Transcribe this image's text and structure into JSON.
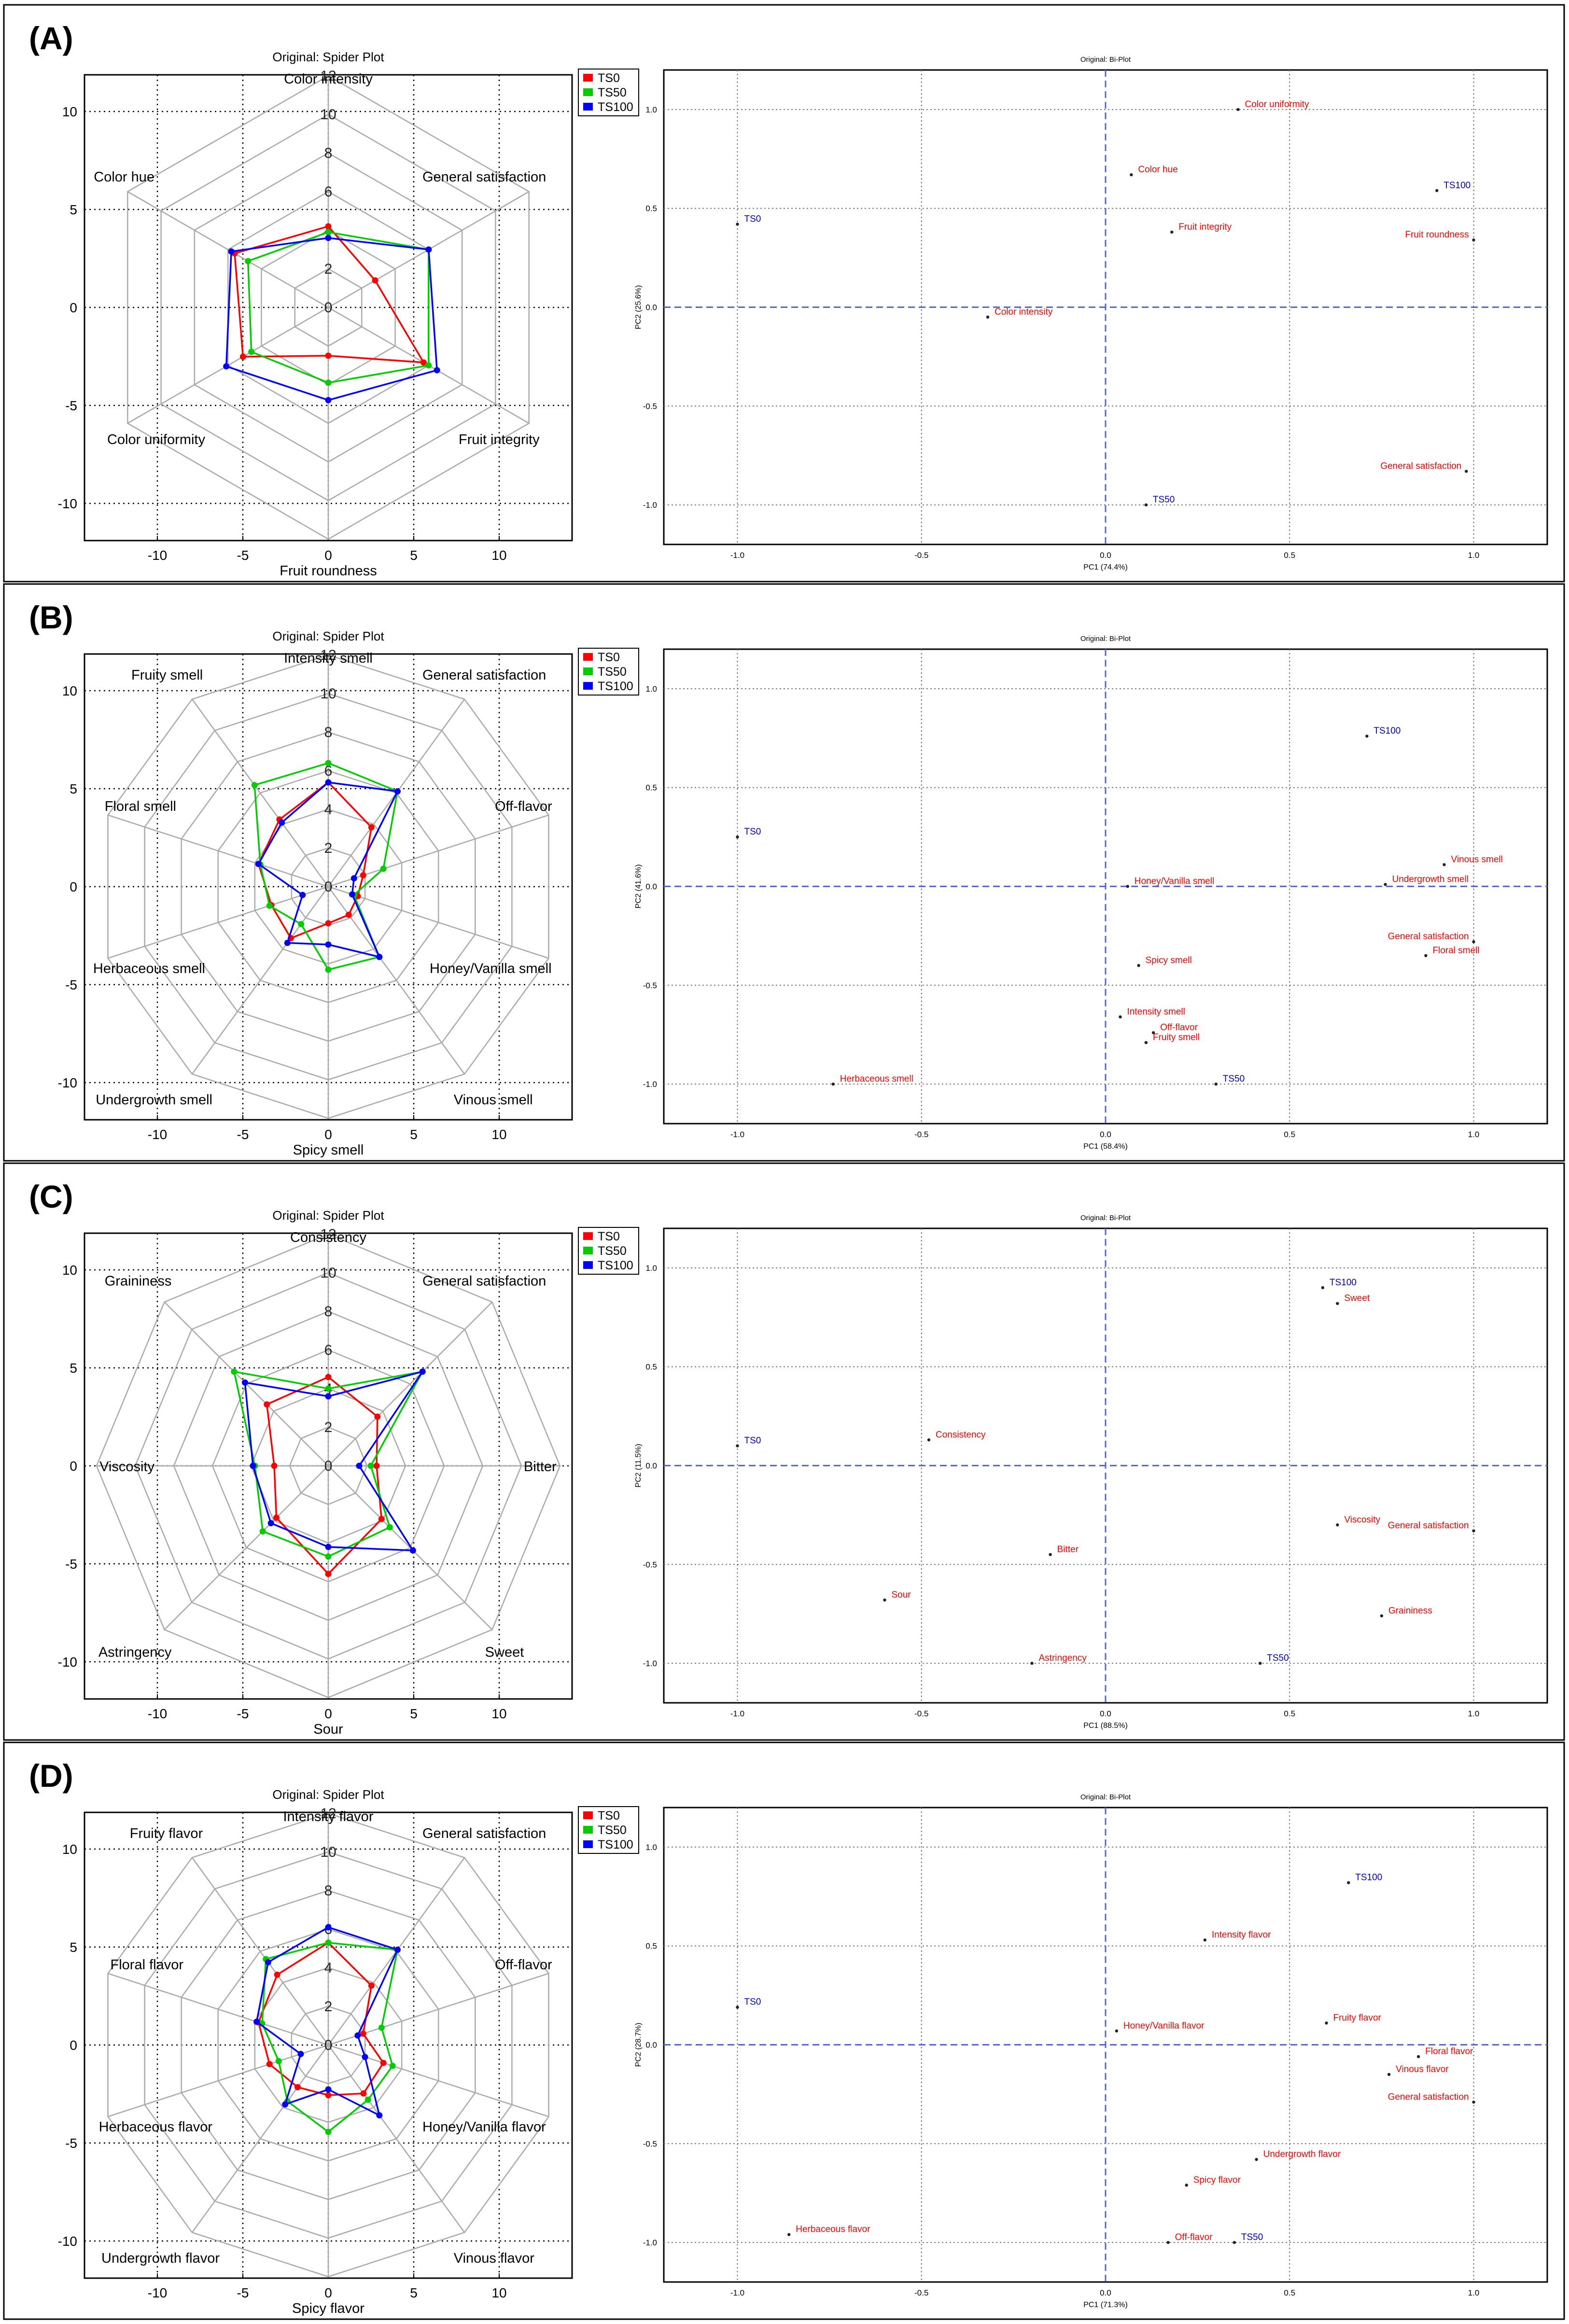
{
  "panel_labels": [
    "(A)",
    "(B)",
    "(C)",
    "(D)"
  ],
  "spider_title": "Original: Spider Plot",
  "biplot_title": "Original: Bi-Plot",
  "legend": [
    {
      "name": "TS0",
      "color": "#ff0000"
    },
    {
      "name": "TS50",
      "color": "#00cc00"
    },
    {
      "name": "TS100",
      "color": "#0000ff"
    }
  ],
  "colors": {
    "point_label": "#ff0000",
    "sample_label": "#0000cc",
    "series_TS0": "#ff0000",
    "series_TS50": "#00cc00",
    "series_TS100": "#0000ff"
  },
  "chart_data": [
    {
      "type": "radar",
      "title": "Original: Spider Plot",
      "rlim": [
        0,
        12
      ],
      "r_ticks": [
        "0",
        "2",
        "4",
        "6",
        "8",
        "10",
        "12"
      ],
      "cart_ticks": [
        "-10",
        "-5",
        "0",
        "5",
        "10"
      ],
      "axes": [
        "Color intensity",
        "General satisfaction",
        "Fruit integrity",
        "Fruit roundness",
        "Color uniformity",
        "Color hue"
      ],
      "series": [
        {
          "name": "TS0",
          "values": [
            4.2,
            2.8,
            5.7,
            2.5,
            5.1,
            5.6
          ]
        },
        {
          "name": "TS50",
          "values": [
            3.9,
            6.0,
            6.0,
            3.9,
            4.6,
            4.8
          ]
        },
        {
          "name": "TS100",
          "values": [
            3.6,
            6.0,
            6.5,
            4.8,
            6.1,
            5.8
          ]
        }
      ]
    },
    {
      "type": "scatter",
      "title": "Original: Bi-Plot",
      "xlabel": "PC1 (74.4%)",
      "ylabel": "PC2 (25.6%)",
      "xlim": [
        -1.2,
        1.2
      ],
      "ylim": [
        -1.2,
        1.2
      ],
      "xticks": [
        "-1.0",
        "-0.5",
        "0.0",
        "0.5",
        "1.0"
      ],
      "yticks": [
        "-1.0",
        "-0.5",
        "0.0",
        "0.5",
        "1.0"
      ],
      "points": [
        {
          "label": "Color uniformity",
          "x": 0.36,
          "y": 1.0,
          "kind": "attribute"
        },
        {
          "label": "Color hue",
          "x": 0.07,
          "y": 0.67,
          "kind": "attribute"
        },
        {
          "label": "TS100",
          "x": 0.9,
          "y": 0.59,
          "kind": "sample"
        },
        {
          "label": "TS0",
          "x": -1.0,
          "y": 0.42,
          "kind": "sample"
        },
        {
          "label": "Fruit integrity",
          "x": 0.18,
          "y": 0.38,
          "kind": "attribute"
        },
        {
          "label": "Fruit roundness",
          "x": 1.0,
          "y": 0.34,
          "kind": "attribute"
        },
        {
          "label": "Color intensity",
          "x": -0.32,
          "y": -0.05,
          "kind": "attribute"
        },
        {
          "label": "General satisfaction",
          "x": 0.98,
          "y": -0.83,
          "kind": "attribute"
        },
        {
          "label": "TS50",
          "x": 0.11,
          "y": -1.0,
          "kind": "sample"
        }
      ]
    },
    {
      "type": "radar",
      "title": "Original: Spider Plot",
      "rlim": [
        0,
        12
      ],
      "r_ticks": [
        "0",
        "2",
        "4",
        "6",
        "8",
        "10",
        "12"
      ],
      "cart_ticks": [
        "-10",
        "-5",
        "0",
        "5",
        "10"
      ],
      "axes": [
        "Intensity smell",
        "General satisfaction",
        "Off-flavor",
        "Honey/Vanilla smell",
        "Vinous smell",
        "Spicy smell",
        "Undergrowth smell",
        "Herbaceous smell",
        "Floral smell",
        "Fruity smell"
      ],
      "series": [
        {
          "name": "TS0",
          "values": [
            5.4,
            3.8,
            1.9,
            1.6,
            1.8,
            1.9,
            3.3,
            3.1,
            3.8,
            4.3
          ]
        },
        {
          "name": "TS50",
          "values": [
            6.4,
            6.1,
            3.0,
            1.4,
            4.5,
            4.3,
            2.4,
            3.2,
            3.7,
            6.5
          ]
        },
        {
          "name": "TS100",
          "values": [
            5.4,
            6.1,
            1.4,
            1.3,
            4.5,
            3.0,
            3.6,
            1.4,
            3.8,
            4.1
          ]
        }
      ]
    },
    {
      "type": "scatter",
      "title": "Original: Bi-Plot",
      "xlabel": "PC1 (58.4%)",
      "ylabel": "PC2 (41.6%)",
      "xlim": [
        -1.2,
        1.2
      ],
      "ylim": [
        -1.2,
        1.2
      ],
      "xticks": [
        "-1.0",
        "-0.5",
        "0.0",
        "0.5",
        "1.0"
      ],
      "yticks": [
        "-1.0",
        "-0.5",
        "0.0",
        "0.5",
        "1.0"
      ],
      "points": [
        {
          "label": "TS100",
          "x": 0.71,
          "y": 0.76,
          "kind": "sample"
        },
        {
          "label": "TS0",
          "x": -1.0,
          "y": 0.25,
          "kind": "sample"
        },
        {
          "label": "Vinous smell",
          "x": 0.92,
          "y": 0.11,
          "kind": "attribute"
        },
        {
          "label": "Honey/Vanilla smell",
          "x": 0.06,
          "y": 0.0,
          "kind": "attribute"
        },
        {
          "label": "Undergrowth smell",
          "x": 0.76,
          "y": 0.01,
          "kind": "attribute"
        },
        {
          "label": "General satisfaction",
          "x": 1.0,
          "y": -0.28,
          "kind": "attribute"
        },
        {
          "label": "Floral smell",
          "x": 0.87,
          "y": -0.35,
          "kind": "attribute"
        },
        {
          "label": "Spicy smell",
          "x": 0.09,
          "y": -0.4,
          "kind": "attribute"
        },
        {
          "label": "Intensity smell",
          "x": 0.04,
          "y": -0.66,
          "kind": "attribute"
        },
        {
          "label": "Off-flavor",
          "x": 0.13,
          "y": -0.74,
          "kind": "attribute"
        },
        {
          "label": "Fruity smell",
          "x": 0.11,
          "y": -0.79,
          "kind": "attribute"
        },
        {
          "label": "Herbaceous smell",
          "x": -0.74,
          "y": -1.0,
          "kind": "attribute"
        },
        {
          "label": "TS50",
          "x": 0.3,
          "y": -1.0,
          "kind": "sample"
        }
      ]
    },
    {
      "type": "radar",
      "title": "Original: Spider Plot",
      "rlim": [
        0,
        12
      ],
      "r_ticks": [
        "0",
        "2",
        "4",
        "6",
        "8",
        "10",
        "12"
      ],
      "cart_ticks": [
        "-10",
        "-5",
        "0",
        "5",
        "10"
      ],
      "axes": [
        "Consistency",
        "General satisfaction",
        "Bitter",
        "Sweet",
        "Sour",
        "Astringency",
        "Viscosity",
        "Graininess"
      ],
      "series": [
        {
          "name": "TS0",
          "values": [
            4.6,
            3.6,
            2.5,
            3.9,
            5.6,
            3.8,
            2.8,
            4.5
          ]
        },
        {
          "name": "TS50",
          "values": [
            4.0,
            6.9,
            2.2,
            4.5,
            4.7,
            4.8,
            3.8,
            6.9
          ]
        },
        {
          "name": "TS100",
          "values": [
            3.6,
            6.9,
            1.6,
            6.2,
            4.2,
            4.2,
            3.9,
            6.1
          ]
        }
      ]
    },
    {
      "type": "scatter",
      "title": "Original: Bi-Plot",
      "xlabel": "PC1 (88.5%)",
      "ylabel": "PC2 (11.5%)",
      "xlim": [
        -1.2,
        1.2
      ],
      "ylim": [
        -1.2,
        1.2
      ],
      "xticks": [
        "-1.0",
        "-0.5",
        "0.0",
        "0.5",
        "1.0"
      ],
      "yticks": [
        "-1.0",
        "-0.5",
        "0.0",
        "0.5",
        "1.0"
      ],
      "points": [
        {
          "label": "TS100",
          "x": 0.59,
          "y": 0.9,
          "kind": "sample"
        },
        {
          "label": "Sweet",
          "x": 0.63,
          "y": 0.82,
          "kind": "attribute"
        },
        {
          "label": "Consistency",
          "x": -0.48,
          "y": 0.13,
          "kind": "attribute"
        },
        {
          "label": "TS0",
          "x": -1.0,
          "y": 0.1,
          "kind": "sample"
        },
        {
          "label": "Viscosity",
          "x": 0.63,
          "y": -0.3,
          "kind": "attribute"
        },
        {
          "label": "General satisfaction",
          "x": 1.0,
          "y": -0.33,
          "kind": "attribute"
        },
        {
          "label": "Bitter",
          "x": -0.15,
          "y": -0.45,
          "kind": "attribute"
        },
        {
          "label": "Sour",
          "x": -0.6,
          "y": -0.68,
          "kind": "attribute"
        },
        {
          "label": "Graininess",
          "x": 0.75,
          "y": -0.76,
          "kind": "attribute"
        },
        {
          "label": "Astringency",
          "x": -0.2,
          "y": -1.0,
          "kind": "attribute"
        },
        {
          "label": "TS50",
          "x": 0.42,
          "y": -1.0,
          "kind": "sample"
        }
      ]
    },
    {
      "type": "radar",
      "title": "Original: Spider Plot",
      "rlim": [
        0,
        12
      ],
      "r_ticks": [
        "0",
        "2",
        "4",
        "6",
        "8",
        "10",
        "12"
      ],
      "cart_ticks": [
        "-10",
        "-5",
        "0",
        "5",
        "10"
      ],
      "axes": [
        "Intensity flavor",
        "General satisfaction",
        "Off-flavor",
        "Honey/Vanilla flavor",
        "Vinous flavor",
        "Spicy flavor",
        "Undergrowth flavor",
        "Herbaceous flavor",
        "Floral flavor",
        "Fruity flavor"
      ],
      "series": [
        {
          "name": "TS0",
          "values": [
            5.3,
            3.8,
            1.9,
            3.0,
            3.1,
            2.6,
            2.7,
            3.2,
            3.8,
            4.5
          ]
        },
        {
          "name": "TS50",
          "values": [
            5.3,
            6.1,
            2.9,
            3.5,
            3.5,
            4.5,
            3.6,
            2.7,
            3.6,
            5.5
          ]
        },
        {
          "name": "TS100",
          "values": [
            6.1,
            6.1,
            1.6,
            2.0,
            4.5,
            2.3,
            3.8,
            1.5,
            3.9,
            5.3
          ]
        }
      ]
    },
    {
      "type": "scatter",
      "title": "Original: Bi-Plot",
      "xlabel": "PC1 (71.3%)",
      "ylabel": "PC2 (28.7%)",
      "xlim": [
        -1.2,
        1.2
      ],
      "ylim": [
        -1.2,
        1.2
      ],
      "xticks": [
        "-1.0",
        "-0.5",
        "0.0",
        "0.5",
        "1.0"
      ],
      "yticks": [
        "-1.0",
        "-0.5",
        "0.0",
        "0.5",
        "1.0"
      ],
      "points": [
        {
          "label": "TS100",
          "x": 0.66,
          "y": 0.82,
          "kind": "sample"
        },
        {
          "label": "Intensity flavor",
          "x": 0.27,
          "y": 0.53,
          "kind": "attribute"
        },
        {
          "label": "TS0",
          "x": -1.0,
          "y": 0.19,
          "kind": "sample"
        },
        {
          "label": "Fruity flavor",
          "x": 0.6,
          "y": 0.11,
          "kind": "attribute"
        },
        {
          "label": "Honey/Vanilla flavor",
          "x": 0.03,
          "y": 0.07,
          "kind": "attribute"
        },
        {
          "label": "Floral flavor",
          "x": 0.85,
          "y": -0.06,
          "kind": "attribute"
        },
        {
          "label": "Vinous flavor",
          "x": 0.77,
          "y": -0.15,
          "kind": "attribute"
        },
        {
          "label": "General satisfaction",
          "x": 1.0,
          "y": -0.29,
          "kind": "attribute"
        },
        {
          "label": "Undergrowth flavor",
          "x": 0.41,
          "y": -0.58,
          "kind": "attribute"
        },
        {
          "label": "Spicy flavor",
          "x": 0.22,
          "y": -0.71,
          "kind": "attribute"
        },
        {
          "label": "Herbaceous flavor",
          "x": -0.86,
          "y": -0.96,
          "kind": "attribute"
        },
        {
          "label": "Off-flavor",
          "x": 0.17,
          "y": -1.0,
          "kind": "attribute"
        },
        {
          "label": "TS50",
          "x": 0.35,
          "y": -1.0,
          "kind": "sample"
        }
      ]
    }
  ]
}
